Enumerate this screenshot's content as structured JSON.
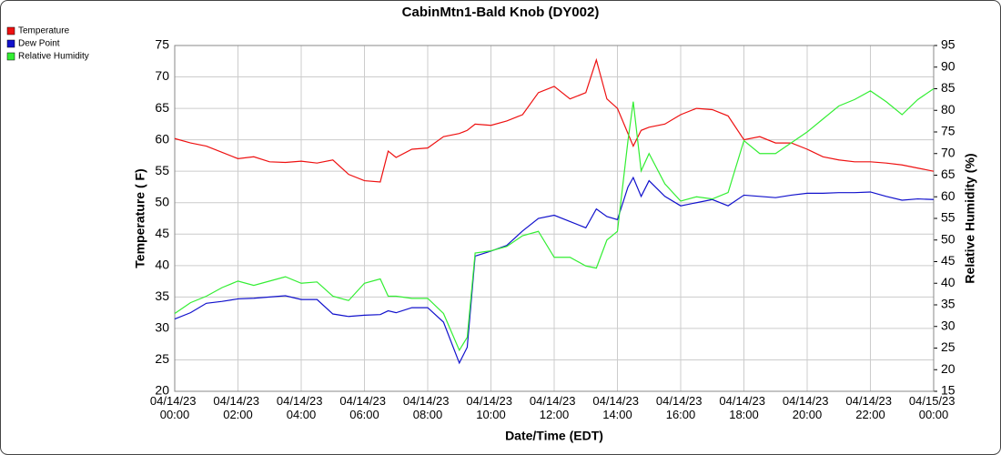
{
  "chart_data": {
    "type": "line",
    "title": "CabinMtn1-Bald Knob (DY002)",
    "x_label": "Date/Time (EDT)",
    "y_label": "Temperature ( F)",
    "y2_label": "Relative Humidity (%)",
    "x": [
      "04/14/23 00:00",
      "04/14/23 00:30",
      "04/14/23 01:00",
      "04/14/23 01:30",
      "04/14/23 02:00",
      "04/14/23 02:30",
      "04/14/23 03:00",
      "04/14/23 03:30",
      "04/14/23 04:00",
      "04/14/23 04:30",
      "04/14/23 05:00",
      "04/14/23 05:30",
      "04/14/23 06:00",
      "04/14/23 06:30",
      "04/14/23 06:45",
      "04/14/23 07:00",
      "04/14/23 07:30",
      "04/14/23 08:00",
      "04/14/23 08:30",
      "04/14/23 09:00",
      "04/14/23 09:15",
      "04/14/23 09:30",
      "04/14/23 10:00",
      "04/14/23 10:30",
      "04/14/23 11:00",
      "04/14/23 11:30",
      "04/14/23 12:00",
      "04/14/23 12:30",
      "04/14/23 13:00",
      "04/14/23 13:20",
      "04/14/23 13:40",
      "04/14/23 14:00",
      "04/14/23 14:20",
      "04/14/23 14:30",
      "04/14/23 14:45",
      "04/14/23 15:00",
      "04/14/23 15:30",
      "04/14/23 16:00",
      "04/14/23 16:30",
      "04/14/23 17:00",
      "04/14/23 17:30",
      "04/14/23 18:00",
      "04/14/23 18:30",
      "04/14/23 19:00",
      "04/14/23 19:30",
      "04/14/23 20:00",
      "04/14/23 20:30",
      "04/14/23 21:00",
      "04/14/23 21:30",
      "04/14/23 22:00",
      "04/14/23 22:30",
      "04/14/23 23:00",
      "04/14/23 23:30",
      "04/15/23 00:00"
    ],
    "series": [
      {
        "name": "Temperature",
        "color": "#ee1111",
        "values": [
          60.2,
          59.5,
          59.0,
          58.0,
          57.0,
          57.3,
          56.5,
          56.4,
          56.6,
          56.3,
          56.8,
          54.5,
          53.5,
          53.3,
          58.2,
          57.2,
          58.5,
          58.7,
          60.5,
          61.0,
          61.5,
          62.5,
          62.3,
          63.0,
          64.0,
          67.5,
          68.5,
          66.5,
          67.5,
          72.7,
          66.5,
          65.0,
          61.0,
          59.0,
          61.5,
          62.0,
          62.5,
          64.0,
          65.0,
          64.8,
          63.8,
          60.0,
          60.5,
          59.5,
          59.5,
          58.5,
          57.3,
          56.8,
          56.5,
          56.5,
          56.3,
          56.0,
          55.5,
          55.0
        ]
      },
      {
        "name": "Dew Point",
        "color": "#1111cc",
        "values": [
          31.5,
          32.5,
          34.0,
          34.3,
          34.7,
          34.8,
          35.0,
          35.2,
          34.6,
          34.6,
          32.3,
          31.9,
          32.1,
          32.2,
          32.8,
          32.5,
          33.3,
          33.3,
          31.0,
          24.5,
          27.0,
          41.5,
          42.3,
          43.2,
          45.5,
          47.5,
          48.0,
          47.0,
          46.0,
          49.0,
          47.8,
          47.3,
          52.5,
          54.0,
          51.0,
          53.5,
          51.0,
          49.5,
          50.0,
          50.5,
          49.5,
          51.2,
          51.0,
          50.8,
          51.2,
          51.5,
          51.5,
          51.6,
          51.6,
          51.7,
          51.0,
          50.4,
          50.6,
          50.5
        ]
      },
      {
        "name": "Relative Humidity",
        "color": "#33ee33",
        "axis": "y2",
        "values": [
          33,
          35.5,
          37,
          39,
          40.5,
          39.5,
          40.5,
          41.5,
          40,
          40.3,
          37,
          36,
          40,
          41,
          37,
          37,
          36.5,
          36.5,
          33,
          24.5,
          27.5,
          47,
          47.5,
          48.5,
          51,
          52,
          46,
          46,
          44,
          43.5,
          50,
          52,
          73,
          82,
          66,
          70,
          63,
          59,
          60,
          59.5,
          61,
          73,
          70,
          70,
          72.5,
          75,
          78,
          81,
          82.5,
          84.5,
          82,
          79,
          82.5,
          85
        ]
      }
    ],
    "xlim": [
      "04/14/23 00:00",
      "04/15/23 00:00"
    ],
    "xticks": [
      "04/14/23 00:00",
      "04/14/23 02:00",
      "04/14/23 04:00",
      "04/14/23 06:00",
      "04/14/23 08:00",
      "04/14/23 10:00",
      "04/14/23 12:00",
      "04/14/23 14:00",
      "04/14/23 16:00",
      "04/14/23 18:00",
      "04/14/23 20:00",
      "04/14/23 22:00",
      "04/15/23 00:00"
    ],
    "ylim": [
      20,
      75
    ],
    "yticks": [
      20,
      25,
      30,
      35,
      40,
      45,
      50,
      55,
      60,
      65,
      70,
      75
    ],
    "y2lim": [
      15,
      95
    ],
    "y2ticks": [
      15,
      20,
      25,
      30,
      35,
      40,
      45,
      50,
      55,
      60,
      65,
      70,
      75,
      80,
      85,
      90,
      95
    ],
    "grid": true,
    "legend": "top-left"
  }
}
